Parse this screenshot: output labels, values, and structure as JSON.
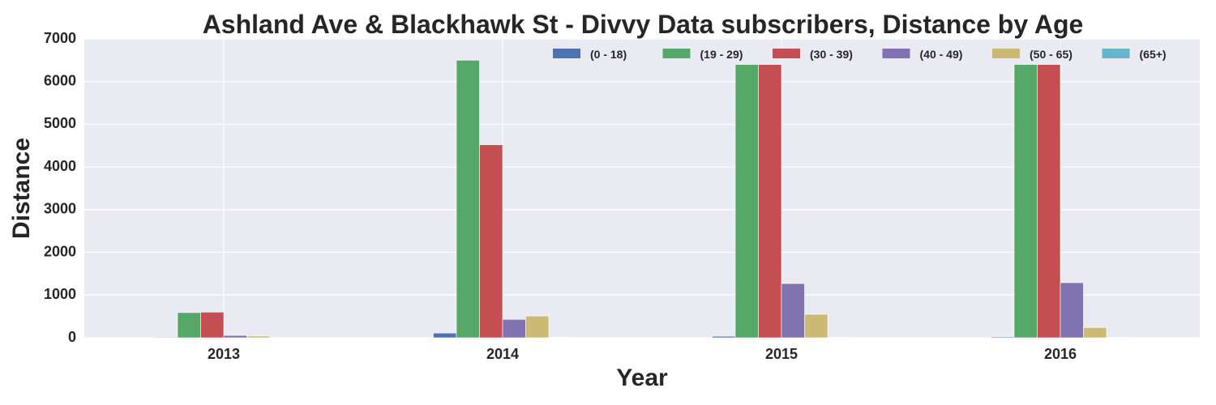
{
  "chart_data": {
    "type": "bar",
    "title": "Ashland Ave & Blackhawk St - Divvy Data subscribers, Distance by Age",
    "xlabel": "Year",
    "ylabel": "Distance",
    "categories": [
      "2013",
      "2014",
      "2015",
      "2016"
    ],
    "ylim": [
      0,
      7000
    ],
    "yticks": [
      0,
      1000,
      2000,
      3000,
      4000,
      5000,
      6000,
      7000
    ],
    "grid": true,
    "legend_position": "top-right",
    "series": [
      {
        "name": "(0 - 18)",
        "color": "#4c72b0",
        "values": [
          15,
          110,
          35,
          20
        ]
      },
      {
        "name": "(19 - 29)",
        "color": "#55a868",
        "values": [
          590,
          6500,
          6400,
          6400
        ]
      },
      {
        "name": "(30 - 39)",
        "color": "#c44e52",
        "values": [
          600,
          4520,
          6400,
          6400
        ]
      },
      {
        "name": "(40 - 49)",
        "color": "#8172b2",
        "values": [
          55,
          430,
          1270,
          1290
        ]
      },
      {
        "name": "(50 - 65)",
        "color": "#ccb974",
        "values": [
          40,
          510,
          550,
          240
        ]
      },
      {
        "name": "(65+)",
        "color": "#64b5cd",
        "values": [
          5,
          10,
          12,
          8
        ]
      }
    ]
  }
}
